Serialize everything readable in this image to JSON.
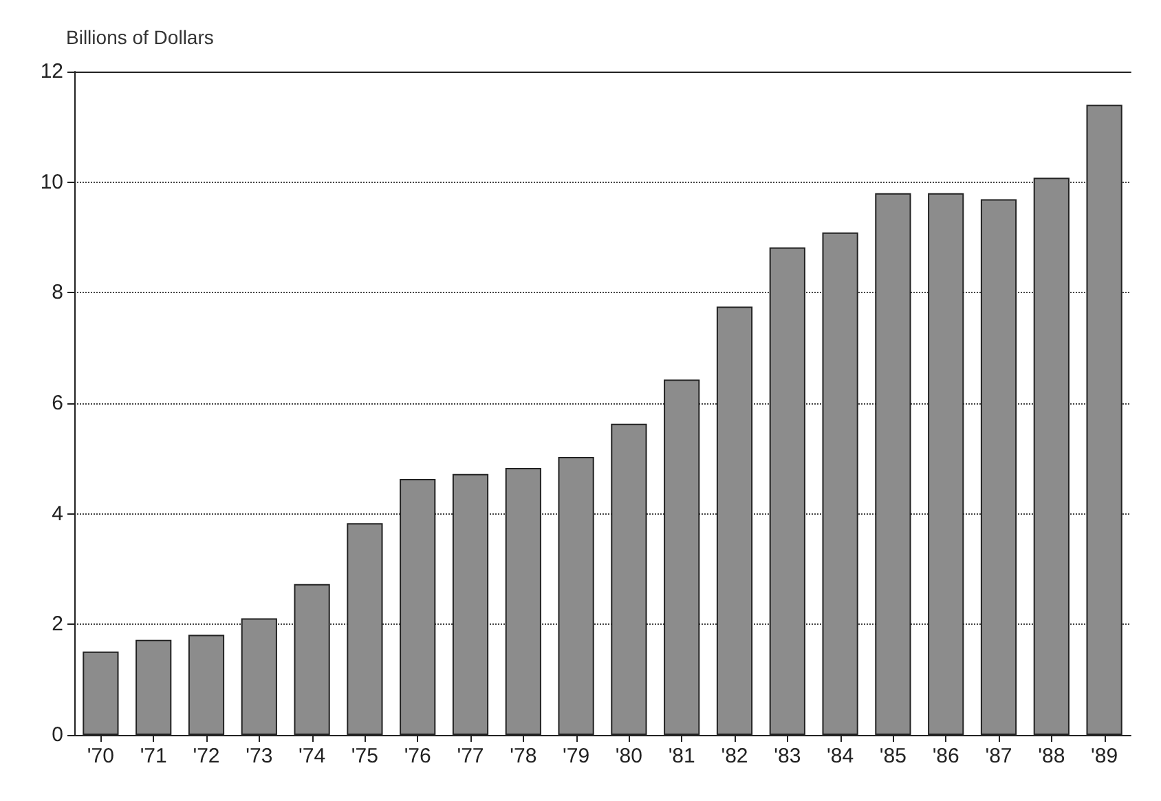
{
  "chart_data": {
    "type": "bar",
    "ylabel": "Billions of Dollars",
    "categories": [
      "'70",
      "'71",
      "'72",
      "'73",
      "'74",
      "'75",
      "'76",
      "'77",
      "'78",
      "'79",
      "'80",
      "'81",
      "'82",
      "'83",
      "'84",
      "'85",
      "'86",
      "'87",
      "'88",
      "'89"
    ],
    "values": [
      1.51,
      1.72,
      1.81,
      2.11,
      2.73,
      3.83,
      4.63,
      4.72,
      4.83,
      5.03,
      5.63,
      6.43,
      7.75,
      8.82,
      9.09,
      9.8,
      9.8,
      9.69,
      10.08,
      11.4
    ],
    "color": "#8c8c8c",
    "ylim": [
      0,
      12
    ],
    "yticks": [
      0,
      2,
      4,
      6,
      8,
      10,
      12
    ],
    "grid": "y"
  }
}
